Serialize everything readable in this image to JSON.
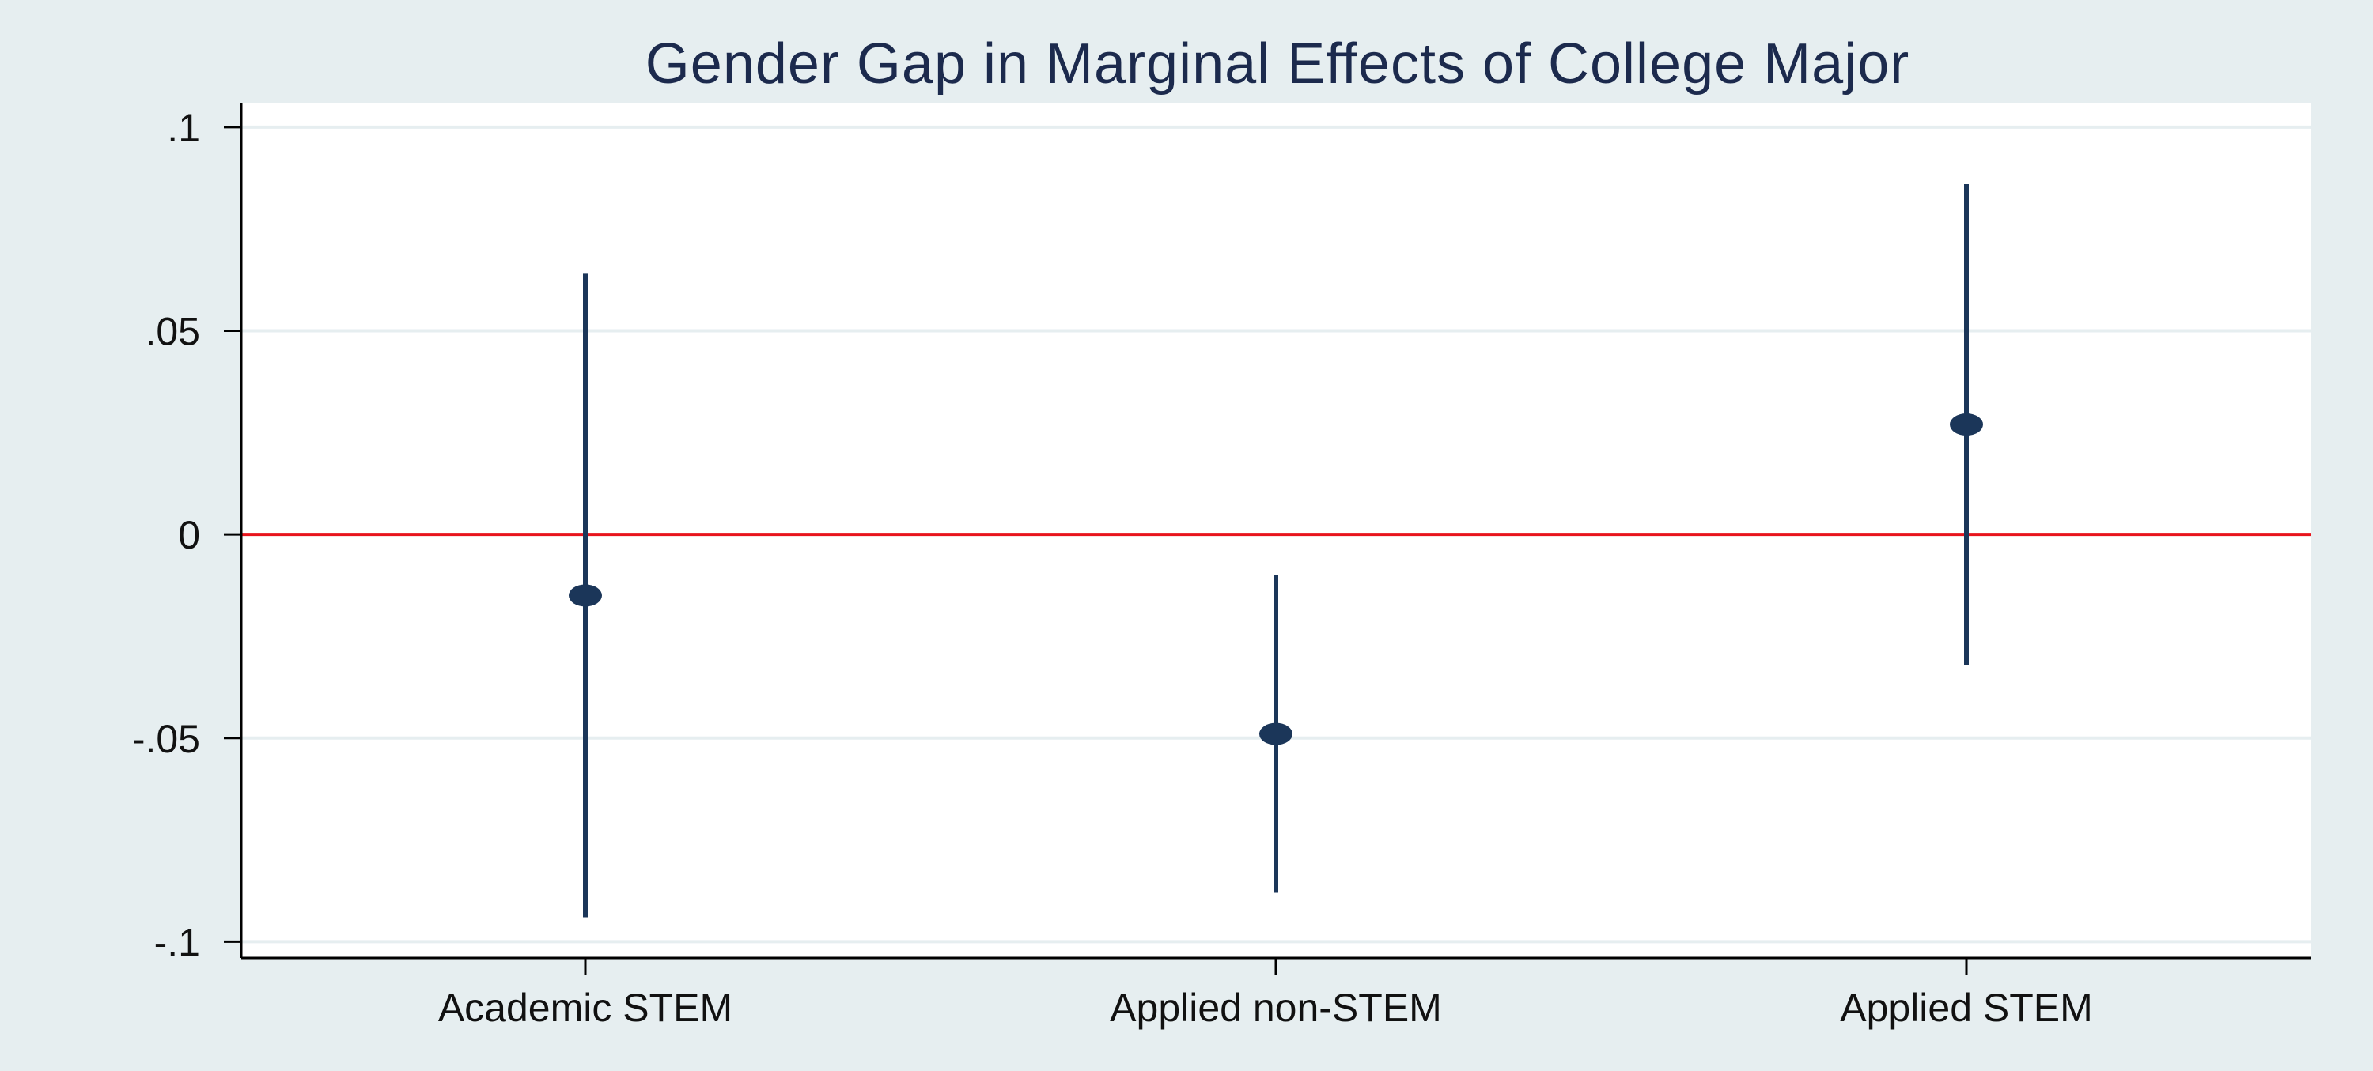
{
  "chart_data": {
    "type": "scatter",
    "title": "Gender Gap in Marginal Effects of College Major",
    "xlabel": "",
    "ylabel": "",
    "categories": [
      "Academic STEM",
      "Applied non-STEM",
      "Applied STEM"
    ],
    "series": [
      {
        "points": [
          {
            "category": "Academic STEM",
            "estimate": -0.015,
            "ci_low": -0.094,
            "ci_high": 0.064
          },
          {
            "category": "Applied non-STEM",
            "estimate": -0.049,
            "ci_low": -0.088,
            "ci_high": -0.01
          },
          {
            "category": "Applied STEM",
            "estimate": 0.027,
            "ci_low": -0.032,
            "ci_high": 0.086
          }
        ]
      }
    ],
    "yticks": [
      {
        "value": 0.1,
        "label": ".1"
      },
      {
        "value": 0.05,
        "label": ".05"
      },
      {
        "value": 0,
        "label": "0"
      },
      {
        "value": -0.05,
        "label": "-.05"
      },
      {
        "value": -0.1,
        "label": "-.1"
      }
    ],
    "ylim": [
      -0.104,
      0.106
    ],
    "reference_line": {
      "value": 0,
      "color": "#e8141c"
    },
    "grid": true,
    "legend": "none",
    "colors": {
      "marker": "#1b3659",
      "title": "#1c2a4d",
      "background": "#e6eef0",
      "plot_background": "#ffffff",
      "gridline": "#e6eef0",
      "axis": "#000000"
    }
  }
}
